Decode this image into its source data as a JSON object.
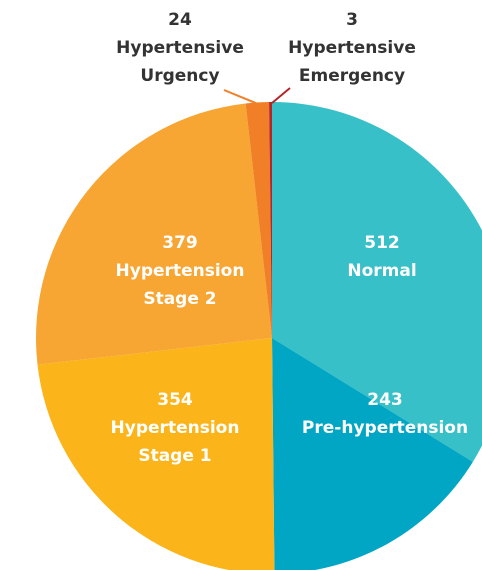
{
  "chart_data": {
    "type": "pie",
    "categories": [
      [
        "Normal"
      ],
      [
        "Pre-hypertension"
      ],
      [
        "Hypertension",
        "Stage 1"
      ],
      [
        "Hypertension",
        "Stage 2"
      ],
      [
        "Hypertensive",
        "Urgency"
      ],
      [
        "Hypertensive",
        "Emergency"
      ]
    ],
    "values": [
      512,
      243,
      354,
      379,
      24,
      3
    ],
    "colors": [
      "#38c0c8",
      "#00a6c4",
      "#fbb51a",
      "#f7a533",
      "#f07f28",
      "#b5252a"
    ]
  }
}
